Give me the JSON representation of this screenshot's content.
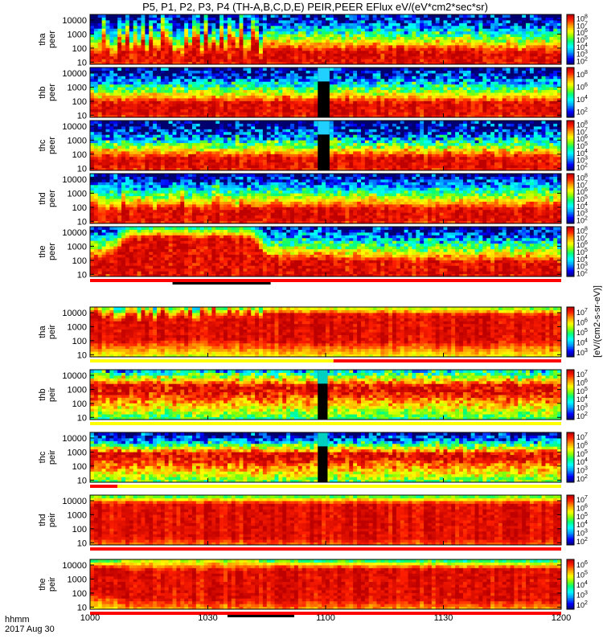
{
  "title": "P5, P1, P2, P3, P4 (TH-A,B,C,D,E) PEIR,PEER EFlux eV/(eV*cm2*sec*sr)",
  "units_label": "[eV/(cm2-s-sr-eV)]",
  "xaxis": {
    "ticks": [
      "1000",
      "1030",
      "1100",
      "1130",
      "1200"
    ],
    "label_line1": "hhmm",
    "label_line2": "2017 Aug 30",
    "start": "10:00",
    "end": "12:00"
  },
  "chart_data": {
    "type": "heatmap",
    "title": "P5, P1, P2, P3, P4 (TH-A,B,C,D,E) PEIR,PEER EFlux eV/(eV*cm2*sec*sr)",
    "x_range_minutes": [
      0,
      120
    ],
    "y_scale": "log",
    "ylim": [
      7,
      25000
    ],
    "ytick_labels": [
      "10",
      "100",
      "1000",
      "10000"
    ],
    "colorbar_colors": [
      "#000070",
      "#0000ff",
      "#00a8ff",
      "#00ffff",
      "#00ff80",
      "#80ff00",
      "#ffff00",
      "#ffa000",
      "#ff2000",
      "#c00000"
    ],
    "panels": [
      {
        "probe": "tha",
        "species": "peer",
        "cbar_ticks": [
          "10^2",
          "10^3",
          "10^4",
          "10^5",
          "10^6",
          "10^7",
          "10^8"
        ],
        "gap": null,
        "profile": [
          {
            "t": 0,
            "lo": 1.3,
            "hi": 2.3,
            "p": 2.9,
            "s": 2.3
          },
          {
            "t": 4,
            "lo": 1.2,
            "hi": 2.1,
            "p": 3.3,
            "s": 2.5
          },
          {
            "t": 14,
            "lo": 1.2,
            "hi": 2.1,
            "p": 3.0,
            "s": 2.5
          },
          {
            "t": 36,
            "lo": 1.1,
            "hi": 2.2,
            "p": 3.0,
            "s": 2.4
          },
          {
            "t": 44,
            "lo": 1.0,
            "hi": 1.9,
            "p": 3.5,
            "s": 3.0
          },
          {
            "t": 120,
            "lo": 1.0,
            "hi": 1.7,
            "p": 3.3,
            "s": 3.1
          }
        ],
        "burst": [
          {
            "t0": 0,
            "t1": 44,
            "amp": 1.6
          }
        ],
        "noise_amp": 0.9,
        "dropout": false,
        "bar": null,
        "bar_tick": null
      },
      {
        "probe": "thb",
        "species": "peer",
        "cbar_ticks": [
          "10^2",
          "10^4",
          "10^6",
          "10^8"
        ],
        "gap": [
          58,
          61
        ],
        "profile": [
          {
            "t": 0,
            "lo": 1.1,
            "hi": 1.9,
            "p": 3.2,
            "s": 3.4
          },
          {
            "t": 120,
            "lo": 1.1,
            "hi": 1.9,
            "p": 3.2,
            "s": 3.4
          }
        ],
        "burst": [],
        "noise_amp": 0.8,
        "dropout": true,
        "bar": null,
        "bar_tick": null
      },
      {
        "probe": "thc",
        "species": "peer",
        "cbar_ticks": [
          "10^2",
          "10^3",
          "10^4",
          "10^5",
          "10^6",
          "10^7",
          "10^8"
        ],
        "gap": [
          58,
          61
        ],
        "profile": [
          {
            "t": 0,
            "lo": 1.1,
            "hi": 1.8,
            "p": 3.2,
            "s": 4.5
          },
          {
            "t": 120,
            "lo": 1.1,
            "hi": 1.8,
            "p": 3.2,
            "s": 4.5
          }
        ],
        "burst": [],
        "noise_amp": 0.8,
        "dropout": true,
        "bar": null,
        "bar_tick": null
      },
      {
        "probe": "thd",
        "species": "peer",
        "cbar_ticks": [
          "10^2",
          "10^3",
          "10^4",
          "10^5",
          "10^6",
          "10^7",
          "10^8"
        ],
        "gap": null,
        "profile": [
          {
            "t": 0,
            "lo": 1.1,
            "hi": 1.9,
            "p": 3.2,
            "s": 2.6
          },
          {
            "t": 120,
            "lo": 1.1,
            "hi": 1.9,
            "p": 3.2,
            "s": 2.6
          }
        ],
        "burst": [
          {
            "t0": 0,
            "t1": 40,
            "amp": 0.5
          }
        ],
        "noise_amp": 0.8,
        "dropout": false,
        "bar": null,
        "bar_tick": null
      },
      {
        "probe": "the",
        "species": "peer",
        "cbar_ticks": [
          "10^2",
          "10^3",
          "10^4",
          "10^5",
          "10^6",
          "10^7",
          "10^8"
        ],
        "gap": null,
        "profile": [
          {
            "t": 0,
            "lo": 1.2,
            "hi": 2.0,
            "p": 3.5,
            "s": 2.3
          },
          {
            "t": 6,
            "lo": 1.2,
            "hi": 2.3,
            "p": 3.0,
            "s": 2.4
          },
          {
            "t": 10,
            "lo": 1.0,
            "hi": 3.6,
            "p": 1.5,
            "s": 1.0
          },
          {
            "t": 41,
            "lo": 1.0,
            "hi": 3.6,
            "p": 1.5,
            "s": 1.0
          },
          {
            "t": 45,
            "lo": 1.0,
            "hi": 2.0,
            "p": 3.5,
            "s": 3.0
          },
          {
            "t": 120,
            "lo": 1.0,
            "hi": 1.8,
            "p": 3.4,
            "s": 3.0
          }
        ],
        "burst": [],
        "noise_amp": 0.9,
        "dropout": false,
        "bar": [
          {
            "t0": 0,
            "t1": 120,
            "color": "#ff0000"
          }
        ],
        "bar_tick": [
          21,
          46
        ]
      },
      {
        "probe": "tha",
        "species": "peir",
        "cbar_ticks": [
          "10^3",
          "10^4",
          "10^5",
          "10^6",
          "10^7"
        ],
        "gap": null,
        "profile": [
          {
            "t": 0,
            "lo": 2.1,
            "hi": 3.8,
            "p": 1.6,
            "s": 1.2
          },
          {
            "t": 10,
            "lo": 2.0,
            "hi": 3.6,
            "p": 1.9,
            "s": 1.4
          },
          {
            "t": 20,
            "lo": 2.2,
            "hi": 3.7,
            "p": 1.8,
            "s": 1.4
          },
          {
            "t": 44,
            "lo": 2.0,
            "hi": 3.9,
            "p": 1.6,
            "s": 1.4
          },
          {
            "t": 120,
            "lo": 2.0,
            "hi": 3.8,
            "p": 1.5,
            "s": 1.5
          }
        ],
        "burst": [
          {
            "t0": 0,
            "t1": 44,
            "amp": 0.8
          }
        ],
        "noise_amp": 0.6,
        "dropout": false,
        "bar": [
          {
            "t0": 0,
            "t1": 62,
            "color": "#ffff00"
          },
          {
            "t0": 62,
            "t1": 120,
            "color": "#ff0000"
          }
        ],
        "bar_tick": null
      },
      {
        "probe": "thb",
        "species": "peir",
        "cbar_ticks": [
          "10^2",
          "10^3",
          "10^4",
          "10^5",
          "10^6",
          "10^7"
        ],
        "gap": [
          58,
          60.5
        ],
        "profile": [
          {
            "t": 0,
            "lo": 2.8,
            "hi": 3.3,
            "p": 2.5,
            "s": 5.0
          },
          {
            "t": 120,
            "lo": 2.8,
            "hi": 3.3,
            "p": 2.5,
            "s": 5.0
          }
        ],
        "burst": [],
        "noise_amp": 1.3,
        "dropout": true,
        "bar": [
          {
            "t0": 0,
            "t1": 59,
            "color": "#ffff00"
          },
          {
            "t0": 59,
            "t1": 120,
            "color": "#ffff00"
          }
        ],
        "bar_tick": null
      },
      {
        "probe": "thc",
        "species": "peir",
        "cbar_ticks": [
          "10^2",
          "10^3",
          "10^4",
          "10^5",
          "10^6",
          "10^7"
        ],
        "gap": [
          58,
          60.5
        ],
        "profile": [
          {
            "t": 0,
            "lo": 2.6,
            "hi": 2.9,
            "p": 1.8,
            "s": 5.0
          },
          {
            "t": 120,
            "lo": 2.6,
            "hi": 2.9,
            "p": 1.8,
            "s": 5.0
          }
        ],
        "burst": [],
        "noise_amp": 1.3,
        "dropout": true,
        "bar": [
          {
            "t0": 0,
            "t1": 7,
            "color": "#ff0000"
          },
          {
            "t0": 7,
            "t1": 120,
            "color": "#ffff00"
          }
        ],
        "bar_tick": null
      },
      {
        "probe": "thd",
        "species": "peir",
        "cbar_ticks": [
          "10^2",
          "10^3",
          "10^4",
          "10^5",
          "10^6",
          "10^7"
        ],
        "gap": null,
        "profile": [
          {
            "t": 0,
            "lo": 1.4,
            "hi": 3.8,
            "p": 1.3,
            "s": 1.2
          },
          {
            "t": 120,
            "lo": 1.3,
            "hi": 3.8,
            "p": 1.3,
            "s": 1.2
          }
        ],
        "burst": [],
        "noise_amp": 0.5,
        "dropout": false,
        "bar": [
          {
            "t0": 0,
            "t1": 120,
            "color": "#ff0000"
          }
        ],
        "bar_tick": null
      },
      {
        "probe": "the",
        "species": "peir",
        "cbar_ticks": [
          "10^2",
          "10^3",
          "10^4",
          "10^5",
          "10^6"
        ],
        "gap": null,
        "profile": [
          {
            "t": 0,
            "lo": 2.0,
            "hi": 3.8,
            "p": 1.2,
            "s": 1.5
          },
          {
            "t": 6,
            "lo": 2.0,
            "hi": 3.8,
            "p": 1.2,
            "s": 1.4
          },
          {
            "t": 10,
            "lo": 1.6,
            "hi": 3.6,
            "p": 2.5,
            "s": 1.2
          },
          {
            "t": 41,
            "lo": 1.6,
            "hi": 3.6,
            "p": 2.5,
            "s": 1.2
          },
          {
            "t": 45,
            "lo": 1.5,
            "hi": 3.8,
            "p": 1.2,
            "s": 1.4
          },
          {
            "t": 120,
            "lo": 1.6,
            "hi": 3.7,
            "p": 1.3,
            "s": 1.4
          }
        ],
        "burst": [],
        "noise_amp": 0.6,
        "dropout": false,
        "bar": [
          {
            "t0": 0,
            "t1": 120,
            "color": "#ff0000"
          }
        ],
        "bar_tick": [
          35,
          52
        ]
      }
    ]
  }
}
